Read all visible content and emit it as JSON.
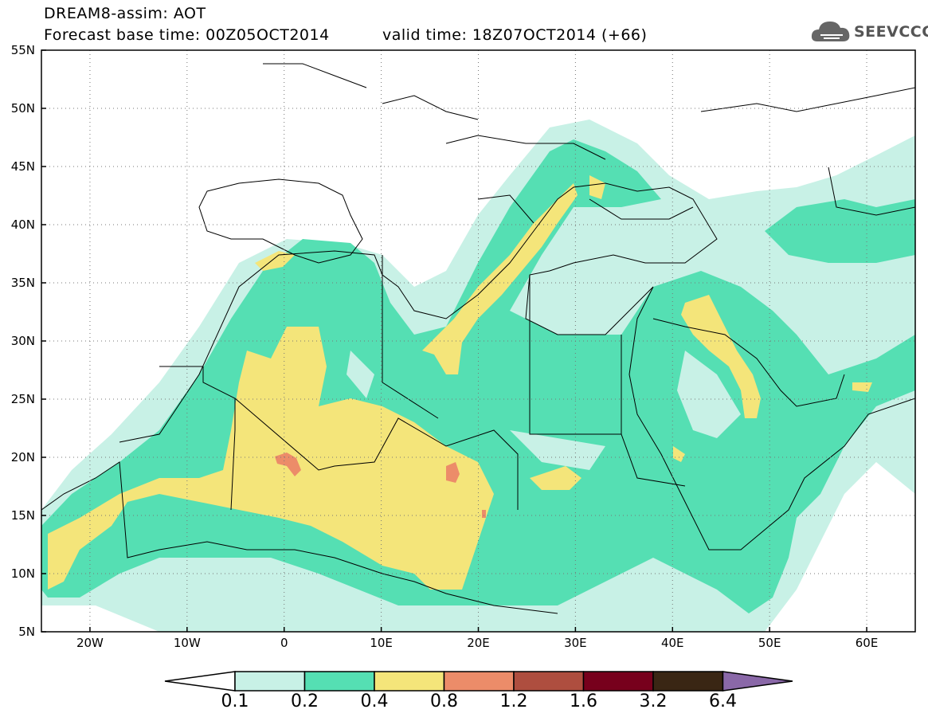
{
  "header": {
    "title": "DREAM8-assim: AOT",
    "base_time": "Forecast base time: 00Z05OCT2014",
    "valid_time": "valid time: 18Z07OCT2014 (+66)"
  },
  "logo": {
    "text": "SEEVCCC",
    "icon": "cloud-icon"
  },
  "map": {
    "lat_labels": [
      "55N",
      "50N",
      "45N",
      "40N",
      "35N",
      "30N",
      "25N",
      "20N",
      "15N",
      "10N",
      "5N"
    ],
    "lon_labels": [
      "20W",
      "10W",
      "0",
      "10E",
      "20E",
      "30E",
      "40E",
      "50E",
      "60E"
    ],
    "lat_values": [
      55,
      50,
      45,
      40,
      35,
      30,
      25,
      20,
      15,
      10,
      5
    ],
    "lon_values": [
      -20,
      -10,
      0,
      10,
      20,
      30,
      40,
      50,
      60
    ],
    "lon_range": [
      -25,
      65
    ],
    "lat_range": [
      5,
      55
    ],
    "grid": true
  },
  "colorbar": {
    "levels": [
      "0.1",
      "0.2",
      "0.4",
      "0.8",
      "1.2",
      "1.6",
      "3.2",
      "6.4"
    ],
    "colors": [
      "#c8f1e6",
      "#55dfb3",
      "#f4e57a",
      "#ec8c69",
      "#ae4e3f",
      "#77001c",
      "#3a2614",
      "#8a68a8"
    ],
    "under_color": "#ffffff"
  }
}
